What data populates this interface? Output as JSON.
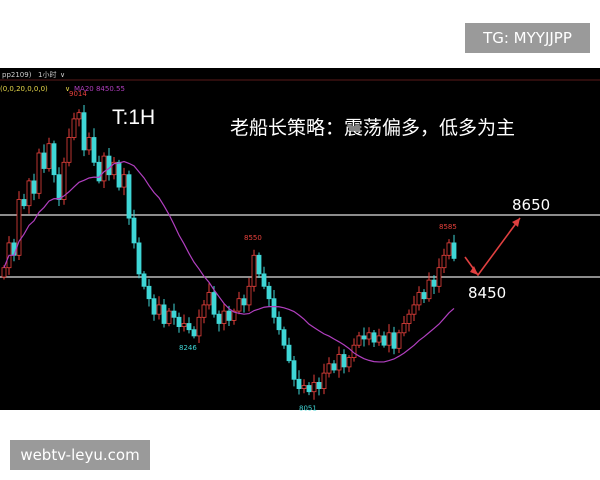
{
  "watermarks": {
    "top": "TG: MYYJJPP",
    "bottom": "webtv-leyu.com"
  },
  "header": {
    "symbol": "pp2109)",
    "period": "1小时",
    "indicator_params": "(0,0,20,0,0,0)",
    "ma_label": "MA20 8450.55"
  },
  "colors": {
    "background": "#000000",
    "up": "#e8413c",
    "down": "#3fd6d6",
    "ma20": "#b13fbf",
    "arrow": "#e04040",
    "level_line": "#bbbbbb"
  },
  "annotations": {
    "timeframe": "T:1H",
    "strategy": "老船长策略：震荡偏多，低多为主",
    "target_label": "8650",
    "support_label": "8450"
  },
  "chart_data": {
    "type": "candlestick",
    "title": "",
    "indicator": "MA20",
    "close": [
      8480,
      8560,
      8520,
      8700,
      8680,
      8760,
      8720,
      8850,
      8800,
      8880,
      8780,
      8700,
      8820,
      8900,
      8960,
      8980,
      8860,
      8900,
      8820,
      8760,
      8840,
      8780,
      8820,
      8740,
      8780,
      8640,
      8560,
      8460,
      8420,
      8380,
      8330,
      8360,
      8300,
      8340,
      8320,
      8290,
      8300,
      8280,
      8260,
      8320,
      8360,
      8400,
      8330,
      8300,
      8340,
      8310,
      8340,
      8380,
      8360,
      8420,
      8520,
      8460,
      8420,
      8380,
      8320,
      8280,
      8230,
      8180,
      8120,
      8090,
      8100,
      8080,
      8110,
      8090,
      8140,
      8170,
      8150,
      8200,
      8160,
      8190,
      8230,
      8260,
      8250,
      8270,
      8240,
      8260,
      8230,
      8270,
      8220,
      8270,
      8300,
      8330,
      8360,
      8400,
      8380,
      8440,
      8420,
      8480,
      8520,
      8560,
      8510
    ],
    "price_labels": [
      {
        "text": "9014",
        "price": 9014,
        "bar": 15
      },
      {
        "text": "8550",
        "price": 8550,
        "bar": 50
      },
      {
        "text": "8246",
        "price": 8246,
        "bar": 37
      },
      {
        "text": "8051",
        "price": 8051,
        "bar": 61
      },
      {
        "text": "8585",
        "price": 8585,
        "bar": 89
      }
    ],
    "horizontal_levels": [
      8650,
      8450
    ],
    "projection": [
      {
        "label": "8450",
        "price": 8450
      },
      {
        "label": "8650",
        "price": 8650
      }
    ]
  }
}
